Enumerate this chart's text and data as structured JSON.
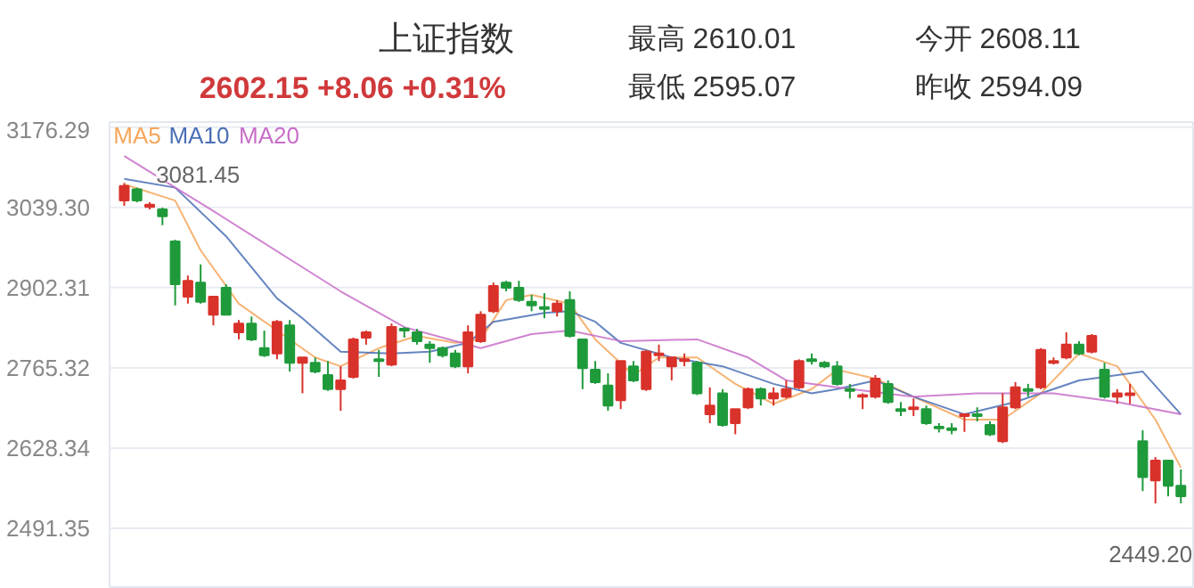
{
  "chart_data": {
    "type": "candlestick",
    "title": "上证指数",
    "subtitle": "2602.15 +8.06 +0.31%",
    "annotations": [
      "最高 2610.01",
      "最低 2595.07",
      "今开 2608.11",
      "昨收 2594.09",
      "3081.45",
      "2449.20"
    ],
    "categories": [
      null,
      null,
      null,
      null,
      null,
      null,
      null,
      null,
      null,
      null,
      null,
      null,
      null,
      null,
      null,
      null,
      null,
      null,
      null,
      null,
      null,
      null,
      null,
      null,
      null,
      null,
      null,
      null,
      null,
      null,
      null,
      null,
      null,
      null,
      null,
      null,
      null,
      null,
      null,
      null,
      null,
      null,
      null,
      null,
      null,
      null,
      null,
      null,
      null,
      null,
      null,
      null,
      null,
      null,
      null,
      null,
      null,
      null,
      null,
      null,
      null,
      null,
      null,
      null,
      null,
      null,
      null,
      null,
      null,
      null,
      null,
      null,
      null,
      null,
      null,
      null,
      null,
      null,
      null,
      null,
      null,
      null,
      null,
      null
    ],
    "ohlc": [
      [
        3051,
        3081,
        3042,
        3076
      ],
      [
        3070,
        3073,
        3048,
        3051
      ],
      [
        3040,
        3048,
        3036,
        3044
      ],
      [
        3036,
        3039,
        3009,
        3024
      ],
      [
        2981,
        2984,
        2872,
        2908
      ],
      [
        2887,
        2923,
        2875,
        2914
      ],
      [
        2911,
        2942,
        2875,
        2878
      ],
      [
        2856,
        2887,
        2838,
        2887
      ],
      [
        2902,
        2908,
        2856,
        2856
      ],
      [
        2826,
        2847,
        2814,
        2841
      ],
      [
        2841,
        2853,
        2811,
        2814
      ],
      [
        2799,
        2829,
        2784,
        2787
      ],
      [
        2790,
        2847,
        2780,
        2844
      ],
      [
        2838,
        2847,
        2759,
        2774
      ],
      [
        2774,
        2783,
        2722,
        2783
      ],
      [
        2774,
        2783,
        2756,
        2759
      ],
      [
        2753,
        2777,
        2726,
        2729
      ],
      [
        2729,
        2768,
        2692,
        2744
      ],
      [
        2750,
        2817,
        2747,
        2814
      ],
      [
        2817,
        2829,
        2805,
        2826
      ],
      [
        2780,
        2796,
        2750,
        2777
      ],
      [
        2771,
        2841,
        2768,
        2835
      ],
      [
        2832,
        2835,
        2817,
        2829
      ],
      [
        2826,
        2832,
        2805,
        2811
      ],
      [
        2805,
        2811,
        2774,
        2799
      ],
      [
        2799,
        2802,
        2783,
        2787
      ],
      [
        2790,
        2796,
        2765,
        2768
      ],
      [
        2768,
        2838,
        2756,
        2826
      ],
      [
        2811,
        2862,
        2808,
        2856
      ],
      [
        2862,
        2911,
        2859,
        2905
      ],
      [
        2911,
        2914,
        2896,
        2902
      ],
      [
        2902,
        2914,
        2878,
        2881
      ],
      [
        2878,
        2890,
        2862,
        2872
      ],
      [
        2869,
        2893,
        2850,
        2866
      ],
      [
        2862,
        2881,
        2853,
        2875
      ],
      [
        2881,
        2896,
        2817,
        2820
      ],
      [
        2814,
        2814,
        2729,
        2765
      ],
      [
        2762,
        2777,
        2738,
        2741
      ],
      [
        2735,
        2756,
        2692,
        2701
      ],
      [
        2710,
        2777,
        2695,
        2777
      ],
      [
        2768,
        2777,
        2741,
        2744
      ],
      [
        2729,
        2796,
        2726,
        2793
      ],
      [
        2787,
        2805,
        2777,
        2790
      ],
      [
        2768,
        2783,
        2744,
        2783
      ],
      [
        2777,
        2790,
        2768,
        2780
      ],
      [
        2774,
        2777,
        2719,
        2722
      ],
      [
        2686,
        2732,
        2671,
        2701
      ],
      [
        2722,
        2729,
        2665,
        2668
      ],
      [
        2671,
        2695,
        2652,
        2695
      ],
      [
        2698,
        2732,
        2695,
        2729
      ],
      [
        2729,
        2732,
        2701,
        2713
      ],
      [
        2713,
        2732,
        2701,
        2722
      ],
      [
        2716,
        2744,
        2713,
        2729
      ],
      [
        2732,
        2780,
        2729,
        2777
      ],
      [
        2780,
        2790,
        2771,
        2777
      ],
      [
        2774,
        2777,
        2765,
        2768
      ],
      [
        2768,
        2777,
        2735,
        2738
      ],
      [
        2729,
        2738,
        2713,
        2726
      ],
      [
        2716,
        2722,
        2695,
        2719
      ],
      [
        2716,
        2753,
        2713,
        2747
      ],
      [
        2738,
        2744,
        2704,
        2707
      ],
      [
        2695,
        2707,
        2683,
        2692
      ],
      [
        2695,
        2713,
        2683,
        2698
      ],
      [
        2695,
        2701,
        2668,
        2671
      ],
      [
        2665,
        2671,
        2655,
        2662
      ],
      [
        2662,
        2671,
        2652,
        2659
      ],
      [
        2683,
        2688,
        2656,
        2686
      ],
      [
        2686,
        2698,
        2674,
        2683
      ],
      [
        2668,
        2674,
        2649,
        2652
      ],
      [
        2640,
        2722,
        2637,
        2698
      ],
      [
        2698,
        2741,
        2695,
        2732
      ],
      [
        2729,
        2738,
        2716,
        2726
      ],
      [
        2732,
        2799,
        2729,
        2796
      ],
      [
        2774,
        2783,
        2771,
        2777
      ],
      [
        2783,
        2826,
        2780,
        2805
      ],
      [
        2805,
        2811,
        2787,
        2790
      ],
      [
        2793,
        2823,
        2790,
        2820
      ],
      [
        2762,
        2774,
        2713,
        2716
      ],
      [
        2716,
        2729,
        2704,
        2722
      ],
      [
        2719,
        2738,
        2704,
        2722
      ],
      [
        2640,
        2659,
        2555,
        2579
      ],
      [
        2573,
        2613,
        2534,
        2607
      ],
      [
        2607,
        2607,
        2546,
        2564
      ],
      [
        2564,
        2592,
        2534,
        2546
      ]
    ],
    "colors": [
      "#d9322b",
      "#1f9a3b",
      "#d9322b",
      "#1f9a3b",
      "#1f9a3b",
      "#d9322b",
      "#1f9a3b",
      "#d9322b",
      "#1f9a3b",
      "#d9322b",
      "#1f9a3b",
      "#1f9a3b",
      "#d9322b",
      "#1f9a3b",
      "#d9322b",
      "#1f9a3b",
      "#1f9a3b",
      "#d9322b",
      "#d9322b",
      "#d9322b",
      "#1f9a3b",
      "#d9322b",
      "#1f9a3b",
      "#1f9a3b",
      "#1f9a3b",
      "#1f9a3b",
      "#1f9a3b",
      "#d9322b",
      "#d9322b",
      "#d9322b",
      "#1f9a3b",
      "#1f9a3b",
      "#1f9a3b",
      "#1f9a3b",
      "#d9322b",
      "#1f9a3b",
      "#1f9a3b",
      "#1f9a3b",
      "#1f9a3b",
      "#d9322b",
      "#1f9a3b",
      "#d9322b",
      "#d9322b",
      "#d9322b",
      "#d9322b",
      "#1f9a3b",
      "#d9322b",
      "#1f9a3b",
      "#d9322b",
      "#d9322b",
      "#1f9a3b",
      "#d9322b",
      "#d9322b",
      "#d9322b",
      "#1f9a3b",
      "#1f9a3b",
      "#1f9a3b",
      "#1f9a3b",
      "#d9322b",
      "#d9322b",
      "#1f9a3b",
      "#1f9a3b",
      "#d9322b",
      "#1f9a3b",
      "#1f9a3b",
      "#1f9a3b",
      "#d9322b",
      "#1f9a3b",
      "#1f9a3b",
      "#d9322b",
      "#d9322b",
      "#1f9a3b",
      "#d9322b",
      "#d9322b",
      "#d9322b",
      "#1f9a3b",
      "#d9322b",
      "#1f9a3b",
      "#d9322b",
      "#d9322b",
      "#1f9a3b",
      "#d9322b",
      "#1f9a3b",
      "#1f9a3b"
    ],
    "series": [
      {
        "name": "MA5",
        "type": "line",
        "color": "#f5a65b",
        "values": [
          3079,
          null,
          null,
          null,
          3051,
          null,
          2966,
          null,
          null,
          2875,
          null,
          null,
          2829,
          null,
          null,
          2783,
          null,
          2768,
          null,
          null,
          2799,
          null,
          null,
          2820,
          null,
          null,
          2808,
          null,
          2814,
          null,
          2881,
          null,
          2890,
          null,
          null,
          2875,
          null,
          2814,
          null,
          null,
          2753,
          null,
          2783,
          null,
          null,
          2783,
          null,
          null,
          2738,
          null,
          null,
          2704,
          null,
          null,
          2729,
          null,
          2762,
          null,
          null,
          2747,
          null,
          null,
          2716,
          null,
          null,
          null,
          2677,
          null,
          null,
          2677,
          null,
          null,
          2722,
          null,
          null,
          2790,
          null,
          null,
          2768,
          null,
          null,
          2677,
          null,
          2595
        ]
      },
      {
        "name": "MA10",
        "type": "line",
        "color": "#4a6fb5",
        "values": [
          3088,
          null,
          null,
          null,
          3073,
          null,
          null,
          null,
          2990,
          null,
          null,
          null,
          2884,
          null,
          2850,
          null,
          null,
          2793,
          null,
          null,
          null,
          2790,
          null,
          null,
          2793,
          null,
          null,
          2808,
          null,
          2844,
          null,
          null,
          null,
          2859,
          null,
          2862,
          null,
          2844,
          null,
          2808,
          null,
          null,
          null,
          2783,
          null,
          null,
          null,
          2768,
          null,
          null,
          null,
          2738,
          null,
          null,
          2722,
          null,
          2729,
          null,
          null,
          2744,
          null,
          null,
          2716,
          null,
          null,
          null,
          2686,
          null,
          null,
          null,
          2707,
          null,
          null,
          null,
          null,
          2744,
          null,
          null,
          null,
          null,
          2759,
          null,
          null,
          2686
        ]
      },
      {
        "name": "MA20",
        "type": "line",
        "color": "#c86ec8",
        "values": [
          3127,
          null,
          null,
          null,
          null,
          null,
          null,
          3033,
          null,
          null,
          null,
          null,
          null,
          null,
          null,
          null,
          null,
          2896,
          null,
          null,
          null,
          null,
          2835,
          null,
          null,
          null,
          null,
          2805,
          2799,
          null,
          null,
          null,
          2823,
          null,
          null,
          2829,
          null,
          null,
          null,
          2811,
          null,
          null,
          null,
          null,
          null,
          2814,
          null,
          null,
          null,
          2783,
          null,
          null,
          2744,
          null,
          null,
          null,
          2732,
          null,
          null,
          null,
          null,
          null,
          2716,
          null,
          null,
          null,
          null,
          2722,
          null,
          null,
          null,
          null,
          null,
          2722,
          null,
          null,
          null,
          null,
          2707,
          null,
          null,
          null,
          null,
          2686
        ]
      }
    ],
    "ylim": [
      2388,
      3185
    ],
    "yticks": [
      3176.29,
      {
        "value": 3039.3,
        "label": "3039.30"
      },
      2902.31,
      2765.32,
      2628.34,
      2491.35
    ],
    "grid": "y",
    "legend": "top left"
  }
}
